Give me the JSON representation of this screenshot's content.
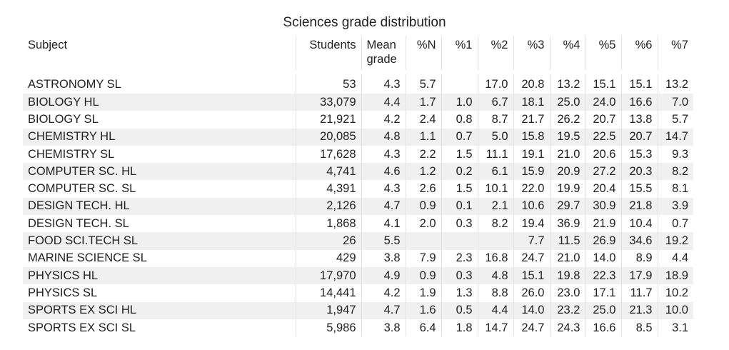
{
  "chart_data": {
    "type": "table",
    "title": "Sciences grade distribution",
    "columns": [
      "Subject",
      "Students",
      "Mean grade",
      "%N",
      "%1",
      "%2",
      "%3",
      "%4",
      "%5",
      "%6",
      "%7"
    ],
    "rows": [
      [
        "ASTRONOMY SL",
        "53",
        "4.3",
        "5.7",
        "",
        "17.0",
        "20.8",
        "13.2",
        "15.1",
        "15.1",
        "13.2"
      ],
      [
        "BIOLOGY HL",
        "33,079",
        "4.4",
        "1.7",
        "1.0",
        "6.7",
        "18.1",
        "25.0",
        "24.0",
        "16.6",
        "7.0"
      ],
      [
        "BIOLOGY SL",
        "21,921",
        "4.2",
        "2.4",
        "0.8",
        "8.7",
        "21.7",
        "26.2",
        "20.7",
        "13.8",
        "5.7"
      ],
      [
        "CHEMISTRY HL",
        "20,085",
        "4.8",
        "1.1",
        "0.7",
        "5.0",
        "15.8",
        "19.5",
        "22.5",
        "20.7",
        "14.7"
      ],
      [
        "CHEMISTRY SL",
        "17,628",
        "4.3",
        "2.2",
        "1.5",
        "11.1",
        "19.1",
        "21.0",
        "20.6",
        "15.3",
        "9.3"
      ],
      [
        "COMPUTER SC. HL",
        "4,741",
        "4.6",
        "1.2",
        "0.2",
        "6.1",
        "15.9",
        "20.9",
        "27.2",
        "20.3",
        "8.2"
      ],
      [
        "COMPUTER SC. SL",
        "4,391",
        "4.3",
        "2.6",
        "1.5",
        "10.1",
        "22.0",
        "19.9",
        "20.4",
        "15.5",
        "8.1"
      ],
      [
        "DESIGN TECH. HL",
        "2,126",
        "4.7",
        "0.9",
        "0.1",
        "2.1",
        "10.6",
        "29.7",
        "30.9",
        "21.8",
        "3.9"
      ],
      [
        "DESIGN TECH. SL",
        "1,868",
        "4.1",
        "2.0",
        "0.3",
        "8.2",
        "19.4",
        "36.9",
        "21.9",
        "10.4",
        "0.7"
      ],
      [
        "FOOD SCI.TECH SL",
        "26",
        "5.5",
        "",
        "",
        "",
        "7.7",
        "11.5",
        "26.9",
        "34.6",
        "19.2"
      ],
      [
        "MARINE SCIENCE SL",
        "429",
        "3.8",
        "7.9",
        "2.3",
        "16.8",
        "24.7",
        "21.0",
        "14.0",
        "8.9",
        "4.4"
      ],
      [
        "PHYSICS HL",
        "17,970",
        "4.9",
        "0.9",
        "0.3",
        "4.8",
        "15.1",
        "19.8",
        "22.3",
        "17.9",
        "18.9"
      ],
      [
        "PHYSICS SL",
        "14,441",
        "4.2",
        "1.9",
        "1.3",
        "8.8",
        "26.0",
        "23.0",
        "17.1",
        "11.7",
        "10.2"
      ],
      [
        "SPORTS EX SCI HL",
        "1,947",
        "4.7",
        "1.6",
        "0.5",
        "4.4",
        "14.0",
        "23.2",
        "25.0",
        "21.3",
        "10.0"
      ],
      [
        "SPORTS EX SCI SL",
        "5,986",
        "3.8",
        "6.4",
        "1.8",
        "14.7",
        "24.7",
        "24.3",
        "16.6",
        "8.5",
        "3.1"
      ]
    ]
  }
}
